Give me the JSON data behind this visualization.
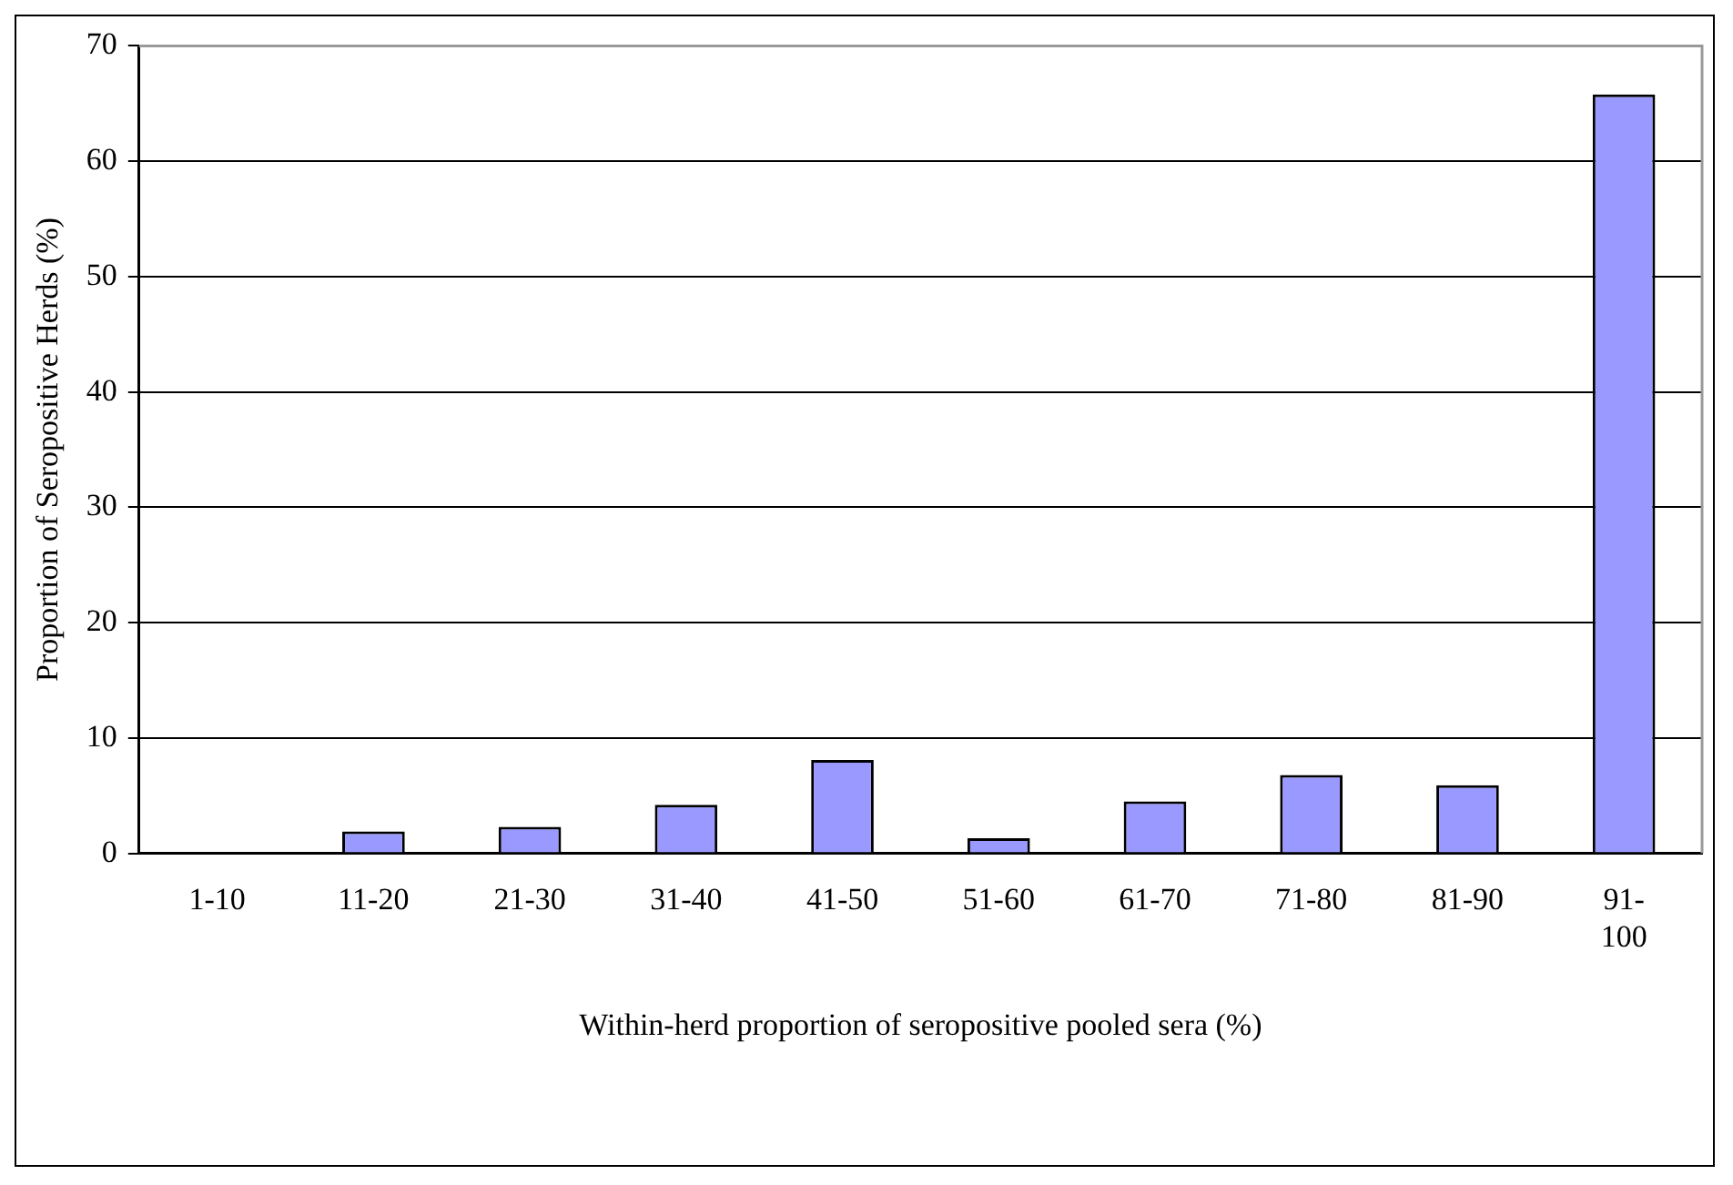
{
  "chart_data": {
    "type": "bar",
    "xlabel": "Within-herd proportion of seropositive pooled sera (%)",
    "ylabel": "Proportion of Seropositive Herds (%)",
    "categories": [
      "1-10",
      "11-20",
      "21-30",
      "31-40",
      "41-50",
      "51-60",
      "61-70",
      "71-80",
      "81-90",
      "91-100"
    ],
    "values": [
      0,
      1.9,
      2.3,
      4.2,
      8.1,
      1.3,
      4.5,
      6.8,
      5.9,
      65.8
    ],
    "color": "#9999ff",
    "ylim": [
      0,
      70
    ],
    "yticks": [
      0,
      10,
      20,
      30,
      40,
      50,
      60,
      70
    ],
    "grid": "y",
    "legend": false
  }
}
